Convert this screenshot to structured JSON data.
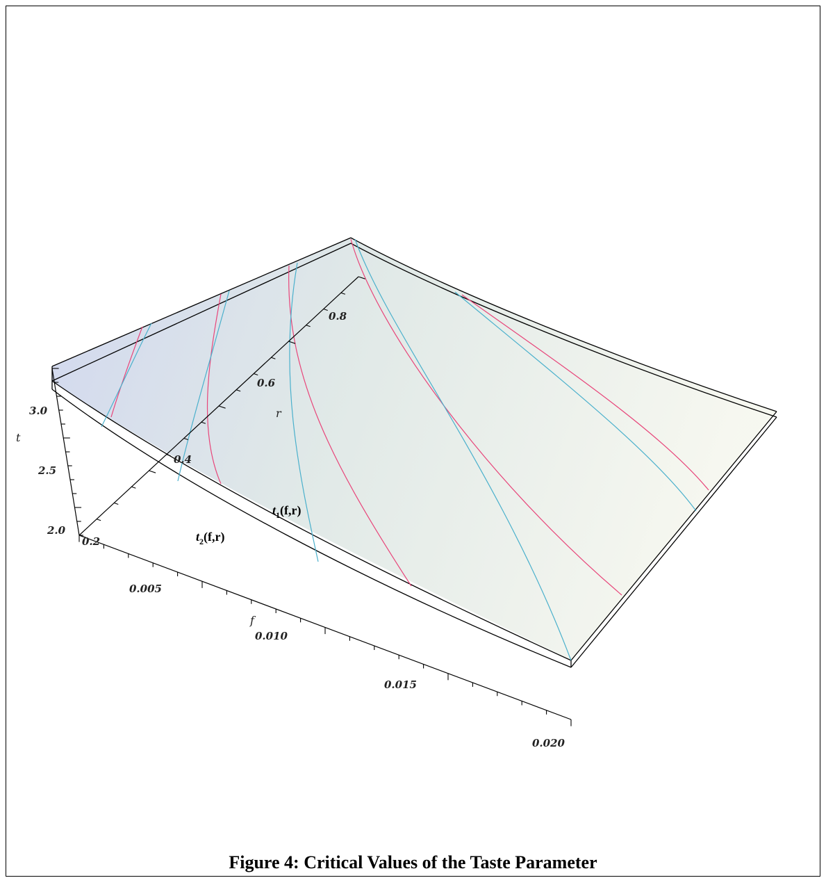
{
  "caption": "Figure 4: Critical Values of the Taste Parameter",
  "chart_data": {
    "type": "surface3d",
    "title": "",
    "axes": {
      "f": {
        "label": "f",
        "range": [
          0,
          0.02
        ],
        "ticks": [
          "0.005",
          "0.010",
          "0.015",
          "0.020"
        ]
      },
      "r": {
        "label": "r",
        "range": [
          0.2,
          0.95
        ],
        "ticks": [
          "0.2",
          "0.4",
          "0.6",
          "0.8"
        ]
      },
      "t": {
        "label": "t",
        "range": [
          2.0,
          3.2
        ],
        "ticks": [
          "2.0",
          "2.5",
          "3.0"
        ]
      }
    },
    "surfaces": [
      {
        "name": "t₁(f,r)",
        "label_base": "t",
        "label_sub": "1",
        "label_args": "(f,r)",
        "mesh_color": "#e8457a"
      },
      {
        "name": "t₂(f,r)",
        "label_base": "t",
        "label_sub": "2",
        "label_args": "(f,r)",
        "mesh_color": "#4ab0cc"
      }
    ],
    "corner_values": [
      {
        "f": 0.0,
        "r": 0.2,
        "t": 3.2
      },
      {
        "f": 0.0,
        "r": 0.95,
        "t": 3.25
      },
      {
        "f": 0.02,
        "r": 0.95,
        "t": 2.55
      },
      {
        "f": 0.02,
        "r": 0.2,
        "t": 2.3
      }
    ],
    "colors": {
      "surface_left": "#cfd6ee",
      "surface_right": "#f4f6ea",
      "mesh_1": "#e8457a",
      "mesh_2": "#4ab0cc"
    }
  }
}
